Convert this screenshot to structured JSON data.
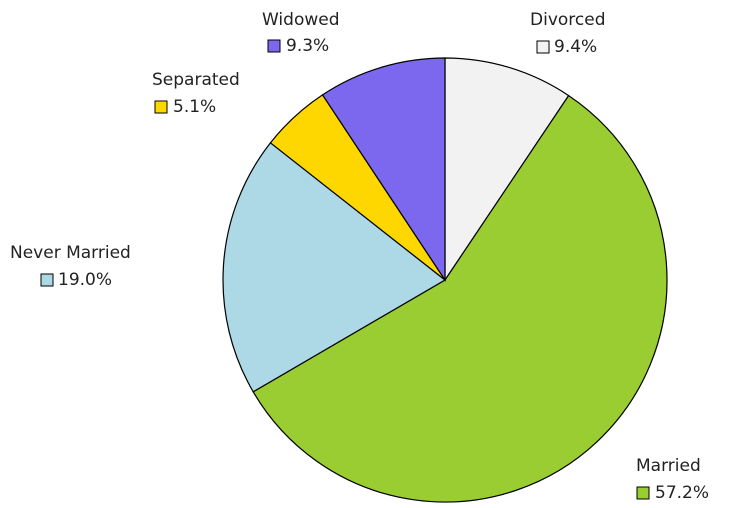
{
  "chart_data": {
    "type": "pie",
    "categories": [
      "Divorced",
      "Married",
      "Never Married",
      "Separated",
      "Widowed"
    ],
    "values": [
      9.4,
      57.2,
      19.0,
      5.1,
      9.3
    ],
    "value_labels": [
      "9.4%",
      "57.2%",
      "19.0%",
      "5.1%",
      "9.3%"
    ],
    "colors": [
      "#f2f2f2",
      "#9acd32",
      "#add8e6",
      "#ffd700",
      "#7b68ee"
    ]
  }
}
